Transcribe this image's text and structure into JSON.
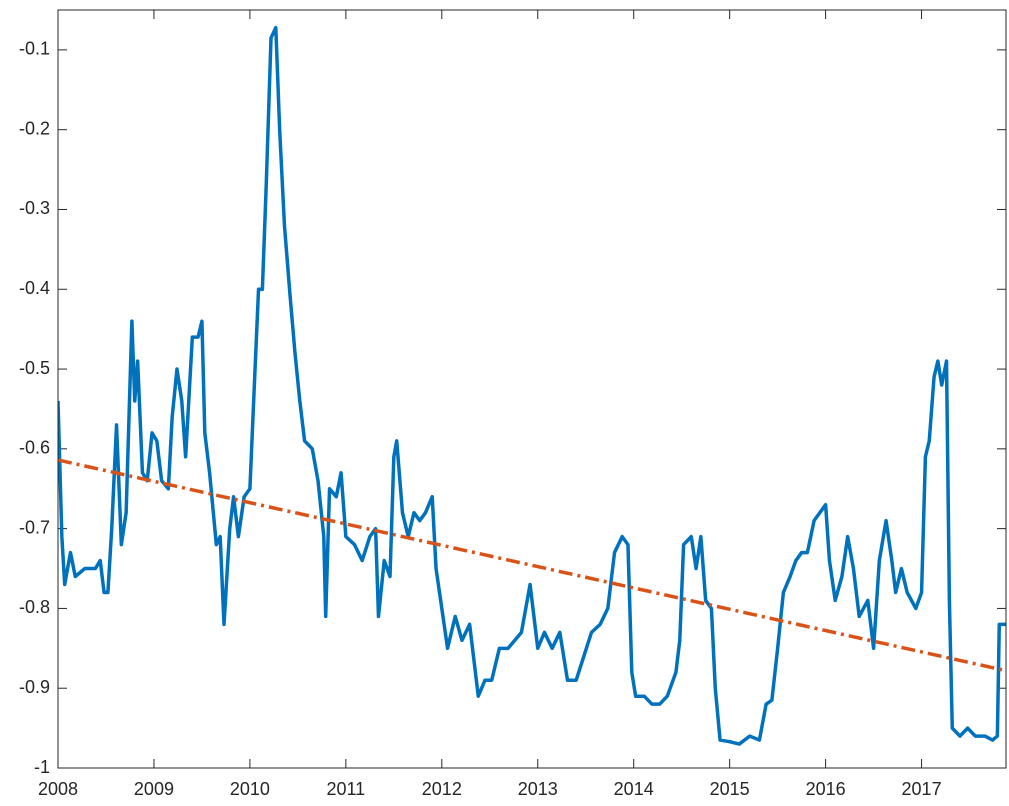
{
  "chart_data": {
    "type": "line",
    "xlim": [
      2008,
      2017.88
    ],
    "xticks": [
      2008,
      2009,
      2010,
      2011,
      2012,
      2013,
      2014,
      2015,
      2016,
      2017
    ],
    "ylim": [
      -1,
      -0.05
    ],
    "yticks": [
      -1,
      -0.9,
      -0.8,
      -0.7,
      -0.6,
      -0.5,
      -0.4,
      -0.3,
      -0.2,
      -0.1
    ],
    "grid": false,
    "series": [
      {
        "color": "#0072bd",
        "line_style": "solid",
        "x": [
          2008.0,
          2008.04,
          2008.07,
          2008.13,
          2008.18,
          2008.28,
          2008.39,
          2008.44,
          2008.48,
          2008.52,
          2008.56,
          2008.61,
          2008.66,
          2008.71,
          2008.77,
          2008.8,
          2008.83,
          2008.88,
          2008.93,
          2008.98,
          2009.03,
          2009.08,
          2009.15,
          2009.19,
          2009.24,
          2009.29,
          2009.33,
          2009.4,
          2009.46,
          2009.5,
          2009.53,
          2009.58,
          2009.65,
          2009.69,
          2009.73,
          2009.79,
          2009.83,
          2009.88,
          2009.94,
          2010.0,
          2010.05,
          2010.09,
          2010.13,
          2010.17,
          2010.22,
          2010.27,
          2010.31,
          2010.36,
          2010.42,
          2010.47,
          2010.52,
          2010.57,
          2010.65,
          2010.71,
          2010.77,
          2010.79,
          2010.83,
          2010.9,
          2010.95,
          2011.0,
          2011.09,
          2011.17,
          2011.25,
          2011.31,
          2011.34,
          2011.4,
          2011.46,
          2011.5,
          2011.53,
          2011.59,
          2011.65,
          2011.71,
          2011.77,
          2011.83,
          2011.9,
          2011.94,
          2012.0,
          2012.06,
          2012.14,
          2012.21,
          2012.29,
          2012.38,
          2012.45,
          2012.52,
          2012.6,
          2012.69,
          2012.76,
          2012.83,
          2012.92,
          2013.0,
          2013.07,
          2013.15,
          2013.23,
          2013.31,
          2013.4,
          2013.48,
          2013.56,
          2013.65,
          2013.73,
          2013.8,
          2013.88,
          2013.94,
          2013.98,
          2014.02,
          2014.11,
          2014.19,
          2014.27,
          2014.35,
          2014.44,
          2014.48,
          2014.52,
          2014.6,
          2014.65,
          2014.7,
          2014.75,
          2014.81,
          2014.85,
          2014.9,
          2015.0,
          2015.1,
          2015.21,
          2015.31,
          2015.38,
          2015.44,
          2015.5,
          2015.56,
          2015.63,
          2015.69,
          2015.75,
          2015.81,
          2015.88,
          2015.94,
          2016.0,
          2016.04,
          2016.1,
          2016.17,
          2016.23,
          2016.29,
          2016.35,
          2016.44,
          2016.5,
          2016.56,
          2016.63,
          2016.69,
          2016.73,
          2016.79,
          2016.85,
          2016.94,
          2017.0,
          2017.04,
          2017.08,
          2017.13,
          2017.17,
          2017.21,
          2017.26,
          2017.29,
          2017.32,
          2017.4,
          2017.48,
          2017.56,
          2017.66,
          2017.74,
          2017.79,
          2017.81,
          2017.88
        ],
        "values": [
          -0.54,
          -0.71,
          -0.77,
          -0.73,
          -0.76,
          -0.75,
          -0.75,
          -0.74,
          -0.78,
          -0.78,
          -0.7,
          -0.57,
          -0.72,
          -0.68,
          -0.44,
          -0.54,
          -0.49,
          -0.63,
          -0.64,
          -0.58,
          -0.59,
          -0.64,
          -0.65,
          -0.56,
          -0.5,
          -0.54,
          -0.61,
          -0.46,
          -0.46,
          -0.44,
          -0.58,
          -0.63,
          -0.72,
          -0.71,
          -0.82,
          -0.7,
          -0.66,
          -0.71,
          -0.66,
          -0.65,
          -0.51,
          -0.4,
          -0.4,
          -0.27,
          -0.085,
          -0.072,
          -0.2,
          -0.32,
          -0.41,
          -0.48,
          -0.54,
          -0.59,
          -0.6,
          -0.64,
          -0.71,
          -0.81,
          -0.65,
          -0.66,
          -0.63,
          -0.71,
          -0.72,
          -0.74,
          -0.71,
          -0.7,
          -0.81,
          -0.74,
          -0.76,
          -0.61,
          -0.59,
          -0.68,
          -0.71,
          -0.68,
          -0.69,
          -0.68,
          -0.66,
          -0.75,
          -0.8,
          -0.85,
          -0.81,
          -0.84,
          -0.82,
          -0.91,
          -0.89,
          -0.89,
          -0.85,
          -0.85,
          -0.84,
          -0.83,
          -0.77,
          -0.85,
          -0.83,
          -0.85,
          -0.83,
          -0.89,
          -0.89,
          -0.86,
          -0.83,
          -0.82,
          -0.8,
          -0.73,
          -0.71,
          -0.72,
          -0.88,
          -0.91,
          -0.91,
          -0.92,
          -0.92,
          -0.91,
          -0.88,
          -0.84,
          -0.72,
          -0.71,
          -0.75,
          -0.71,
          -0.79,
          -0.8,
          -0.9,
          -0.965,
          -0.967,
          -0.97,
          -0.96,
          -0.965,
          -0.92,
          -0.915,
          -0.85,
          -0.78,
          -0.76,
          -0.74,
          -0.73,
          -0.73,
          -0.69,
          -0.68,
          -0.67,
          -0.74,
          -0.79,
          -0.76,
          -0.71,
          -0.75,
          -0.81,
          -0.79,
          -0.85,
          -0.74,
          -0.69,
          -0.74,
          -0.78,
          -0.75,
          -0.78,
          -0.8,
          -0.78,
          -0.61,
          -0.59,
          -0.51,
          -0.49,
          -0.52,
          -0.49,
          -0.79,
          -0.95,
          -0.96,
          -0.95,
          -0.96,
          -0.96,
          -0.965,
          -0.96,
          -0.82,
          -0.82
        ]
      },
      {
        "color": "#d95319",
        "line_style": "dashdot",
        "x": [
          2008,
          2017.88
        ],
        "values": [
          -0.614,
          -0.878
        ]
      }
    ]
  }
}
